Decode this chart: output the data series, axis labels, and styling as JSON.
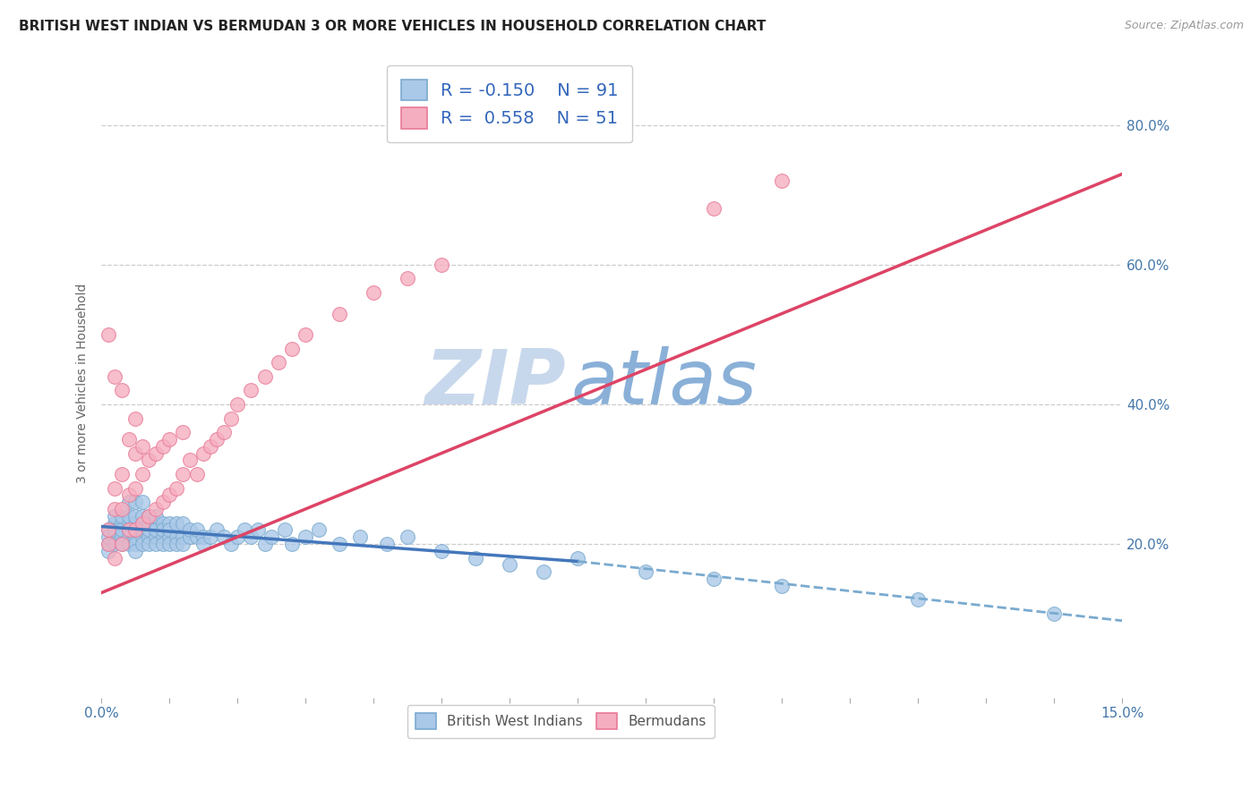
{
  "title": "BRITISH WEST INDIAN VS BERMUDAN 3 OR MORE VEHICLES IN HOUSEHOLD CORRELATION CHART",
  "source_text": "Source: ZipAtlas.com",
  "ylabel_label": "3 or more Vehicles in Household",
  "yticks_right_vals": [
    0.2,
    0.4,
    0.6,
    0.8
  ],
  "yticks_right": [
    "20.0%",
    "40.0%",
    "60.0%",
    "80.0%"
  ],
  "xmin": 0.0,
  "xmax": 0.15,
  "ymin": -0.02,
  "ymax": 0.88,
  "legend_blue_r": "R = -0.150",
  "legend_blue_n": "N = 91",
  "legend_pink_r": "R =  0.558",
  "legend_pink_n": "N = 51",
  "blue_color": "#aac8e8",
  "pink_color": "#f5aec0",
  "blue_edge": "#7aaacf",
  "pink_edge": "#e87a96",
  "trend_blue_solid_color": "#4477bb",
  "trend_blue_dash_color": "#7aaacf",
  "trend_pink_color": "#dd4466",
  "watermark_zip_color": "#c8d8ec",
  "watermark_atlas_color": "#8ab0d8",
  "title_color": "#222222",
  "axis_color": "#4477aa",
  "legend_text_color": "#3366bb",
  "grid_color": "#cccccc",
  "bg_color": "#ffffff",
  "blue_scatter_x": [
    0.001,
    0.001,
    0.001,
    0.001,
    0.002,
    0.002,
    0.002,
    0.002,
    0.002,
    0.003,
    0.003,
    0.003,
    0.003,
    0.003,
    0.004,
    0.004,
    0.004,
    0.004,
    0.004,
    0.004,
    0.005,
    0.005,
    0.005,
    0.005,
    0.005,
    0.005,
    0.005,
    0.006,
    0.006,
    0.006,
    0.006,
    0.006,
    0.006,
    0.007,
    0.007,
    0.007,
    0.007,
    0.007,
    0.008,
    0.008,
    0.008,
    0.008,
    0.008,
    0.009,
    0.009,
    0.009,
    0.009,
    0.01,
    0.01,
    0.01,
    0.01,
    0.011,
    0.011,
    0.011,
    0.012,
    0.012,
    0.012,
    0.013,
    0.013,
    0.014,
    0.014,
    0.015,
    0.015,
    0.016,
    0.017,
    0.018,
    0.019,
    0.02,
    0.021,
    0.022,
    0.023,
    0.024,
    0.025,
    0.027,
    0.028,
    0.03,
    0.032,
    0.035,
    0.038,
    0.042,
    0.045,
    0.05,
    0.055,
    0.06,
    0.065,
    0.07,
    0.08,
    0.09,
    0.1,
    0.12,
    0.14
  ],
  "blue_scatter_y": [
    0.2,
    0.22,
    0.19,
    0.21,
    0.21,
    0.23,
    0.2,
    0.22,
    0.24,
    0.21,
    0.23,
    0.2,
    0.22,
    0.24,
    0.21,
    0.23,
    0.2,
    0.22,
    0.24,
    0.26,
    0.21,
    0.23,
    0.2,
    0.22,
    0.24,
    0.26,
    0.19,
    0.21,
    0.23,
    0.2,
    0.22,
    0.24,
    0.26,
    0.21,
    0.23,
    0.2,
    0.22,
    0.24,
    0.21,
    0.23,
    0.2,
    0.22,
    0.24,
    0.21,
    0.23,
    0.2,
    0.22,
    0.21,
    0.23,
    0.2,
    0.22,
    0.21,
    0.23,
    0.2,
    0.21,
    0.23,
    0.2,
    0.21,
    0.22,
    0.21,
    0.22,
    0.21,
    0.2,
    0.21,
    0.22,
    0.21,
    0.2,
    0.21,
    0.22,
    0.21,
    0.22,
    0.2,
    0.21,
    0.22,
    0.2,
    0.21,
    0.22,
    0.2,
    0.21,
    0.2,
    0.21,
    0.19,
    0.18,
    0.17,
    0.16,
    0.18,
    0.16,
    0.15,
    0.14,
    0.12,
    0.1
  ],
  "pink_scatter_x": [
    0.001,
    0.001,
    0.001,
    0.002,
    0.002,
    0.002,
    0.002,
    0.003,
    0.003,
    0.003,
    0.003,
    0.004,
    0.004,
    0.004,
    0.005,
    0.005,
    0.005,
    0.005,
    0.006,
    0.006,
    0.006,
    0.007,
    0.007,
    0.008,
    0.008,
    0.009,
    0.009,
    0.01,
    0.01,
    0.011,
    0.012,
    0.012,
    0.013,
    0.014,
    0.015,
    0.016,
    0.017,
    0.018,
    0.019,
    0.02,
    0.022,
    0.024,
    0.026,
    0.028,
    0.03,
    0.035,
    0.04,
    0.045,
    0.05,
    0.09,
    0.1
  ],
  "pink_scatter_y": [
    0.22,
    0.2,
    0.5,
    0.18,
    0.25,
    0.28,
    0.44,
    0.2,
    0.25,
    0.3,
    0.42,
    0.22,
    0.27,
    0.35,
    0.22,
    0.28,
    0.33,
    0.38,
    0.23,
    0.3,
    0.34,
    0.24,
    0.32,
    0.25,
    0.33,
    0.26,
    0.34,
    0.27,
    0.35,
    0.28,
    0.3,
    0.36,
    0.32,
    0.3,
    0.33,
    0.34,
    0.35,
    0.36,
    0.38,
    0.4,
    0.42,
    0.44,
    0.46,
    0.48,
    0.5,
    0.53,
    0.56,
    0.58,
    0.6,
    0.68,
    0.72
  ],
  "blue_solid_trend_x": [
    0.0,
    0.07
  ],
  "blue_solid_trend_y": [
    0.225,
    0.175
  ],
  "blue_dash_trend_x": [
    0.07,
    0.15
  ],
  "blue_dash_trend_y": [
    0.175,
    0.09
  ],
  "pink_solid_trend_x": [
    0.0,
    0.15
  ],
  "pink_solid_trend_y": [
    0.13,
    0.73
  ]
}
